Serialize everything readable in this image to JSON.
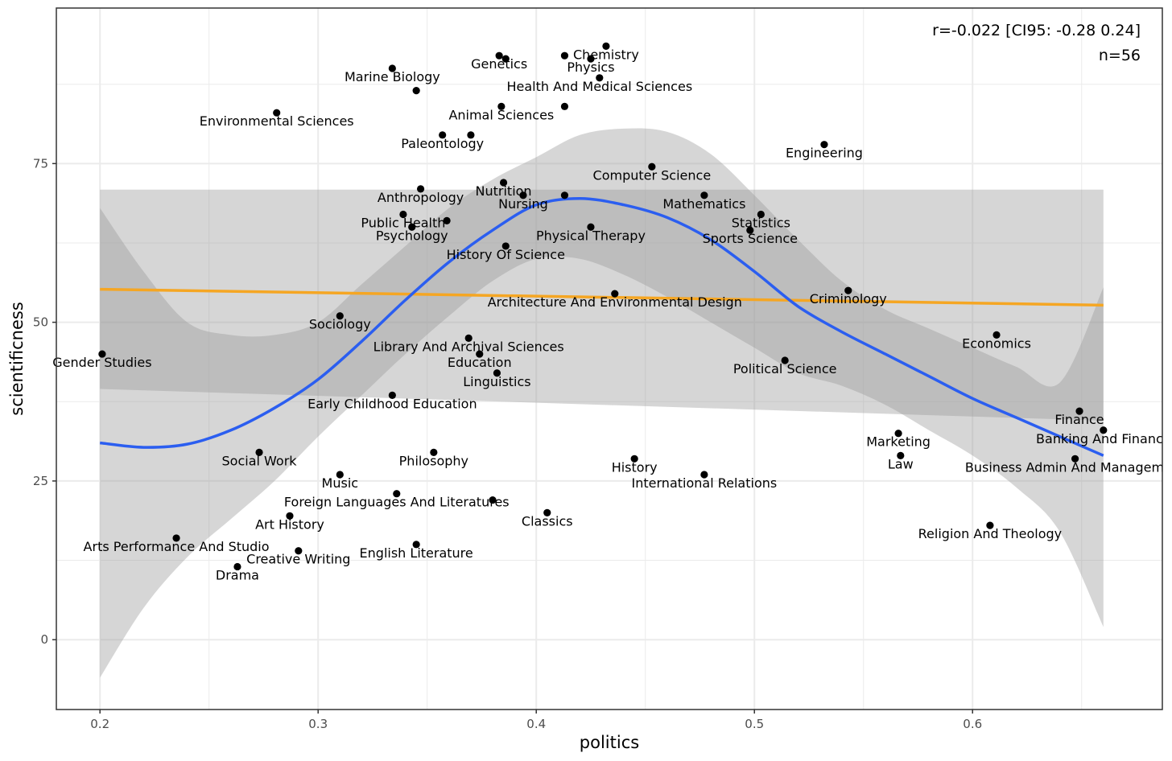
{
  "chart_data": {
    "type": "scatter",
    "xlabel": "politics",
    "ylabel": "scientificness",
    "xlim": [
      0.18,
      0.687
    ],
    "ylim": [
      -11,
      99.5
    ],
    "x_ticks": [
      0.2,
      0.3,
      0.4,
      0.5,
      0.6
    ],
    "x_tick_labels": [
      "0.2",
      "0.3",
      "0.4",
      "0.5",
      "0.6"
    ],
    "y_ticks": [
      0,
      25,
      50,
      75
    ],
    "y_tick_labels": [
      "0",
      "25",
      "50",
      "75"
    ],
    "grid": true,
    "annotations": [
      "r=-0.022 [CI95: -0.28 0.24]",
      "n=56"
    ],
    "colors": {
      "points": "#000000",
      "linear_fit": "#f5a623",
      "loess_fit": "#2b5ef0",
      "confidence_band": "#999999",
      "grid": "#ebebeb",
      "panel_border": "#333333"
    },
    "points": [
      {
        "label": "Chemistry",
        "x": 0.432,
        "y": 93.5
      },
      {
        "label": "Genetics",
        "x": 0.383,
        "y": 92.0
      },
      {
        "label": "Physics",
        "x": 0.425,
        "y": 91.5
      },
      {
        "label": "",
        "x": 0.386,
        "y": 91.5
      },
      {
        "label": "",
        "x": 0.413,
        "y": 92.0
      },
      {
        "label": "Marine Biology",
        "x": 0.334,
        "y": 90.0
      },
      {
        "label": "Health And Medical Sciences",
        "x": 0.429,
        "y": 88.5
      },
      {
        "label": "",
        "x": 0.345,
        "y": 86.5
      },
      {
        "label": "Animal Sciences",
        "x": 0.384,
        "y": 84.0
      },
      {
        "label": "",
        "x": 0.413,
        "y": 84.0
      },
      {
        "label": "Environmental Sciences",
        "x": 0.281,
        "y": 83.0
      },
      {
        "label": "Paleontology",
        "x": 0.357,
        "y": 79.5
      },
      {
        "label": "",
        "x": 0.37,
        "y": 79.5
      },
      {
        "label": "Engineering",
        "x": 0.532,
        "y": 78.0
      },
      {
        "label": "Computer Science",
        "x": 0.453,
        "y": 74.5
      },
      {
        "label": "Nutrition",
        "x": 0.385,
        "y": 72.0
      },
      {
        "label": "Anthropology",
        "x": 0.347,
        "y": 71.0
      },
      {
        "label": "Nursing",
        "x": 0.394,
        "y": 70.0
      },
      {
        "label": "",
        "x": 0.413,
        "y": 70.0
      },
      {
        "label": "Mathematics",
        "x": 0.477,
        "y": 70.0
      },
      {
        "label": "Public Health",
        "x": 0.339,
        "y": 67.0
      },
      {
        "label": "Statistics",
        "x": 0.503,
        "y": 67.0
      },
      {
        "label": "",
        "x": 0.359,
        "y": 66.0
      },
      {
        "label": "Psychology",
        "x": 0.343,
        "y": 65.0
      },
      {
        "label": "Physical Therapy",
        "x": 0.425,
        "y": 65.0
      },
      {
        "label": "Sports Science",
        "x": 0.498,
        "y": 64.5
      },
      {
        "label": "History Of Science",
        "x": 0.386,
        "y": 62.0
      },
      {
        "label": "Criminology",
        "x": 0.543,
        "y": 55.0
      },
      {
        "label": "Architecture And Environmental Design",
        "x": 0.436,
        "y": 54.5
      },
      {
        "label": "Sociology",
        "x": 0.31,
        "y": 51.0
      },
      {
        "label": "Economics",
        "x": 0.611,
        "y": 48.0
      },
      {
        "label": "Library And Archival Sciences",
        "x": 0.369,
        "y": 47.5
      },
      {
        "label": "Education",
        "x": 0.374,
        "y": 45.0
      },
      {
        "label": "Gender Studies",
        "x": 0.201,
        "y": 45.0
      },
      {
        "label": "Political Science",
        "x": 0.514,
        "y": 44.0
      },
      {
        "label": "Linguistics",
        "x": 0.382,
        "y": 42.0
      },
      {
        "label": "Early Childhood Education",
        "x": 0.334,
        "y": 38.5
      },
      {
        "label": "Finance",
        "x": 0.649,
        "y": 36.0
      },
      {
        "label": "Banking And Finance",
        "x": 0.66,
        "y": 33.0
      },
      {
        "label": "Marketing",
        "x": 0.566,
        "y": 32.5
      },
      {
        "label": "Philosophy",
        "x": 0.353,
        "y": 29.5
      },
      {
        "label": "Social Work",
        "x": 0.273,
        "y": 29.5
      },
      {
        "label": "Law",
        "x": 0.567,
        "y": 29.0
      },
      {
        "label": "History",
        "x": 0.445,
        "y": 28.5
      },
      {
        "label": "Business Admin And Management",
        "x": 0.647,
        "y": 28.5
      },
      {
        "label": "International Relations",
        "x": 0.477,
        "y": 26.0
      },
      {
        "label": "Music",
        "x": 0.31,
        "y": 26.0
      },
      {
        "label": "Foreign Languages And Literatures",
        "x": 0.336,
        "y": 23.0
      },
      {
        "label": "",
        "x": 0.38,
        "y": 22.0
      },
      {
        "label": "Classics",
        "x": 0.405,
        "y": 20.0
      },
      {
        "label": "Art History",
        "x": 0.287,
        "y": 19.5
      },
      {
        "label": "Religion And Theology",
        "x": 0.608,
        "y": 18.0
      },
      {
        "label": "Arts Performance And Studio",
        "x": 0.235,
        "y": 16.0
      },
      {
        "label": "English Literature",
        "x": 0.345,
        "y": 15.0
      },
      {
        "label": "Creative Writing",
        "x": 0.291,
        "y": 14.0
      },
      {
        "label": "Drama",
        "x": 0.263,
        "y": 11.5
      }
    ],
    "linear_fit": {
      "x": [
        0.2,
        0.66
      ],
      "y": [
        55.2,
        52.7
      ],
      "ci_upper": [
        70.9,
        70.9
      ],
      "ci_lower": [
        39.5,
        34.5
      ]
    },
    "loess_fit": {
      "x": [
        0.2,
        0.22,
        0.24,
        0.26,
        0.28,
        0.3,
        0.32,
        0.34,
        0.36,
        0.38,
        0.4,
        0.42,
        0.44,
        0.46,
        0.48,
        0.5,
        0.52,
        0.54,
        0.56,
        0.58,
        0.6,
        0.62,
        0.64,
        0.66
      ],
      "y": [
        31.0,
        30.3,
        30.8,
        33.0,
        36.5,
        41.0,
        47.0,
        53.5,
        59.5,
        64.5,
        68.5,
        69.5,
        68.5,
        66.5,
        63.0,
        58.0,
        52.5,
        48.5,
        45.0,
        41.5,
        38.0,
        35.0,
        32.0,
        29.0
      ],
      "ci_upper": [
        68.0,
        58.0,
        50.0,
        48.0,
        48.0,
        50.0,
        56.0,
        62.0,
        68.0,
        72.5,
        76.0,
        79.5,
        80.5,
        80.0,
        76.5,
        70.0,
        63.0,
        56.5,
        52.0,
        49.0,
        46.0,
        43.0,
        40.5,
        55.5
      ],
      "ci_lower": [
        -6.0,
        5.0,
        13.0,
        19.0,
        25.0,
        32.0,
        38.5,
        45.0,
        51.0,
        56.5,
        60.0,
        60.0,
        57.5,
        54.0,
        50.0,
        46.0,
        42.0,
        40.0,
        37.0,
        33.0,
        29.0,
        24.0,
        17.0,
        2.0
      ]
    }
  }
}
